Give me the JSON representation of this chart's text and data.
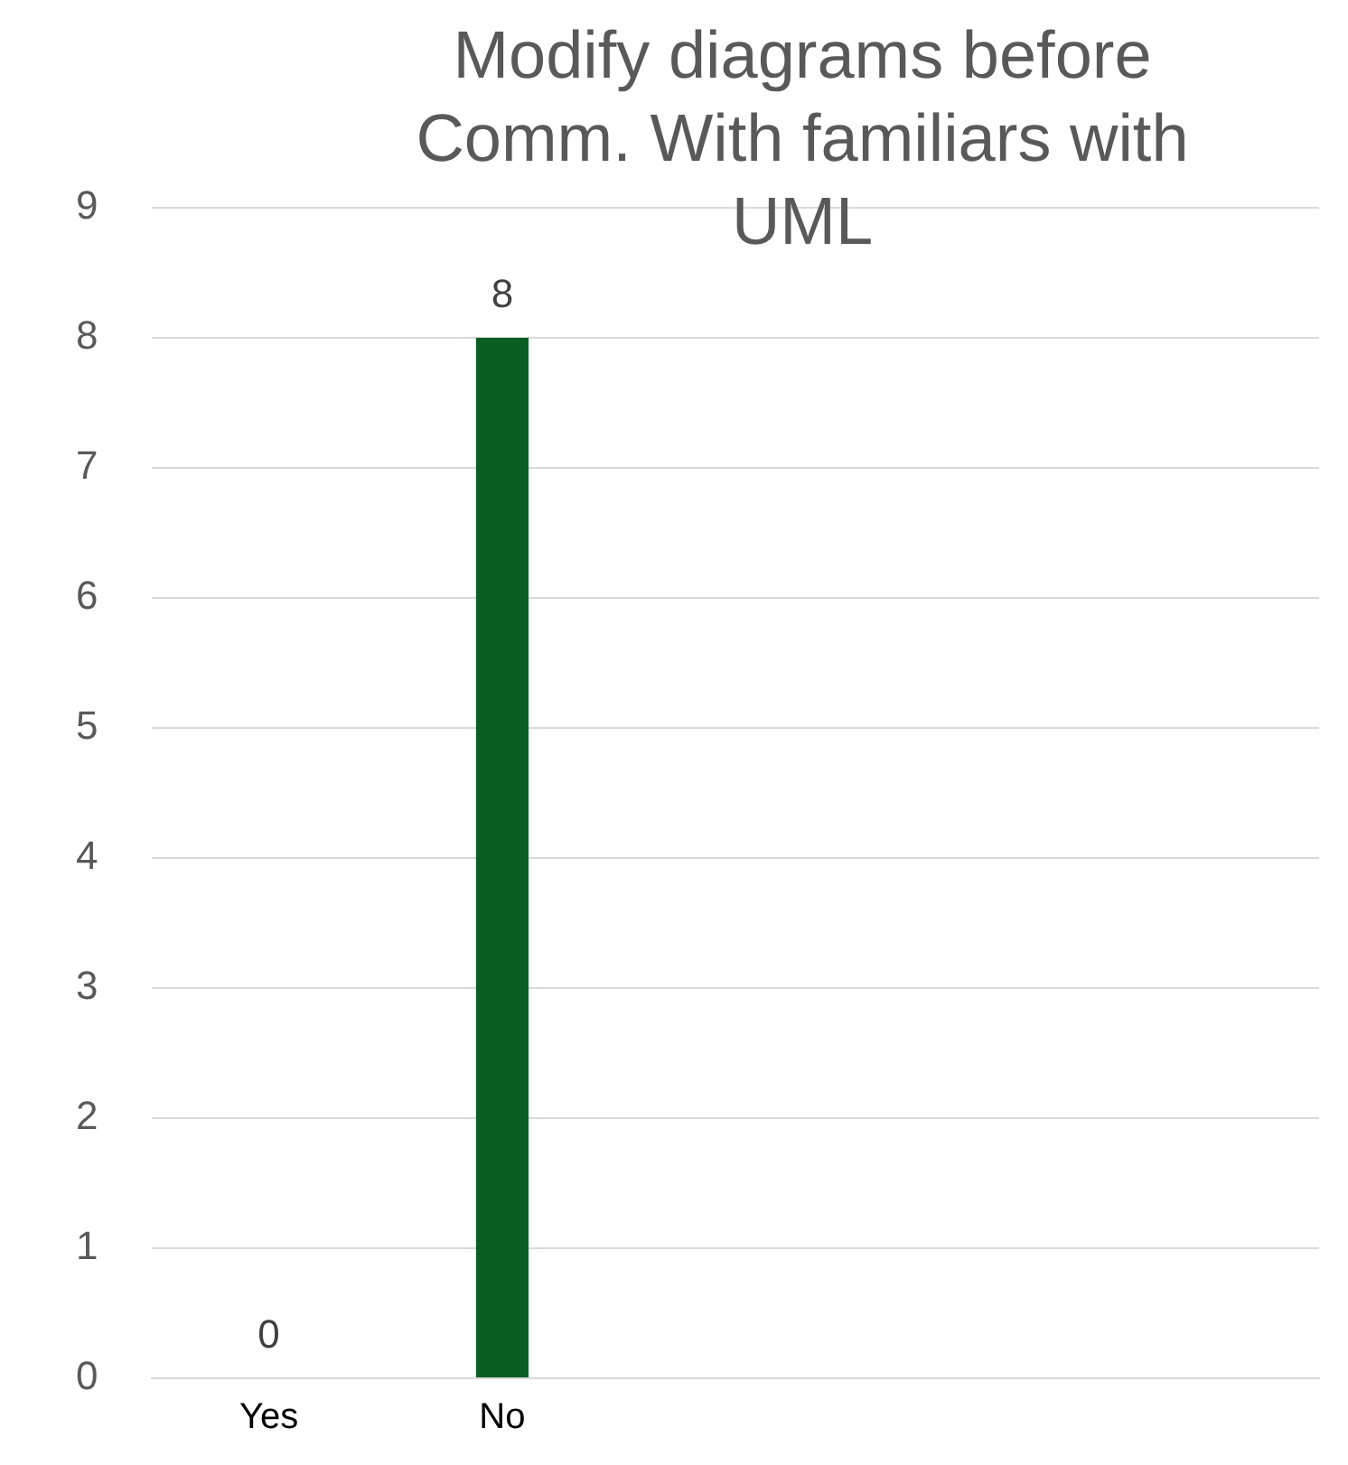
{
  "chart_data": {
    "type": "bar",
    "title": "Modify diagrams before Comm. With familiars with UML",
    "categories": [
      "Yes",
      "No",
      null,
      null,
      null
    ],
    "values": [
      0,
      8,
      null,
      null,
      null
    ],
    "color": "#0b5e23",
    "ylim": [
      0,
      9
    ],
    "yticks": [
      0,
      1,
      2,
      3,
      4,
      5,
      6,
      7,
      8,
      9
    ],
    "grid": "y",
    "legend": false,
    "data_labels": true
  }
}
